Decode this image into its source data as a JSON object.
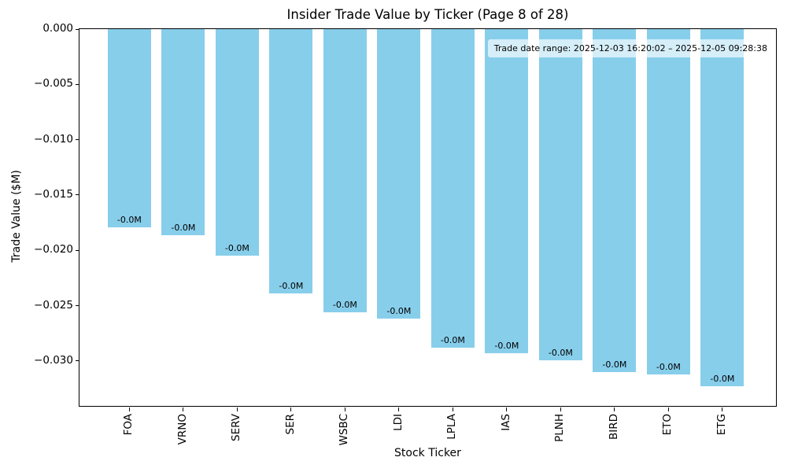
{
  "chart_data": {
    "type": "bar",
    "title": "Insider Trade Value by Ticker (Page 8 of 28)",
    "xlabel": "Stock Ticker",
    "ylabel": "Trade Value ($M)",
    "categories": [
      "FOA",
      "VRNO",
      "SERV",
      "SER",
      "WSBC",
      "LDI",
      "LPLA",
      "IAS",
      "PLNH",
      "BIRD",
      "ETO",
      "ETG"
    ],
    "values": [
      -0.0179,
      -0.0186,
      -0.0205,
      -0.0239,
      -0.0256,
      -0.0262,
      -0.0288,
      -0.0293,
      -0.0299,
      -0.031,
      -0.0312,
      -0.0323
    ],
    "bar_labels": [
      "-0.0M",
      "-0.0M",
      "-0.0M",
      "-0.0M",
      "-0.0M",
      "-0.0M",
      "-0.0M",
      "-0.0M",
      "-0.0M",
      "-0.0M",
      "-0.0M",
      "-0.0M"
    ],
    "bar_color": "#87CEEB",
    "ylim": [
      -0.0342,
      0
    ],
    "yticks": [
      0,
      -0.005,
      -0.01,
      -0.015,
      -0.02,
      -0.025,
      -0.03
    ],
    "ytick_labels": [
      "0.000",
      "−0.005",
      "−0.010",
      "−0.015",
      "−0.020",
      "−0.025",
      "−0.030"
    ],
    "grid": false,
    "legend": "none",
    "annotation": "Trade date range: 2025-12-03 16:20:02 – 2025-12-05 09:28:38"
  }
}
